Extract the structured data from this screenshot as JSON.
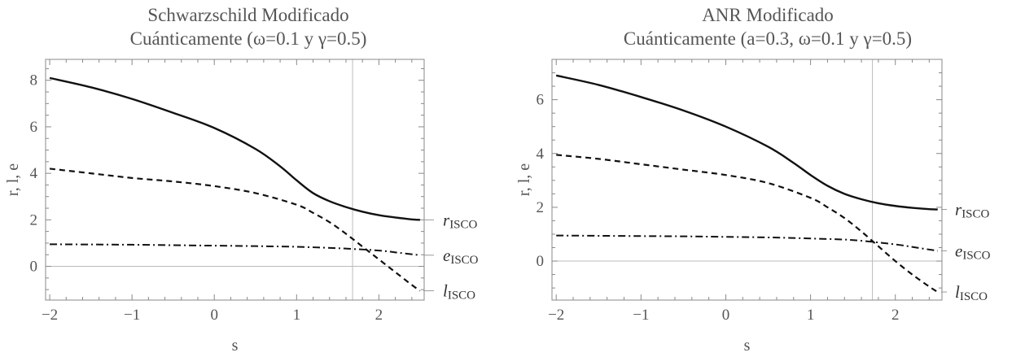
{
  "chart_data": [
    {
      "type": "line",
      "title_lines": [
        "Schwarzschild  Modificado",
        "Cuánticamente  (ω=0.1 y γ=0.5)"
      ],
      "xlabel": "s",
      "ylabel": "r,  l,  e",
      "xlim": [
        -2.05,
        2.55
      ],
      "ylim": [
        -1.45,
        8.9
      ],
      "xticks": [
        -2,
        -1,
        0,
        1,
        2
      ],
      "xtick_labels": [
        "−2",
        "−1",
        "0",
        "1",
        "2"
      ],
      "yticks": [
        0,
        2,
        4,
        6,
        8
      ],
      "ytick_labels": [
        "0",
        "2",
        "4",
        "6",
        "8"
      ],
      "reference_lines": {
        "y": 0,
        "x": 1.68
      },
      "series": [
        {
          "name": "r_ISCO",
          "label_main": "r",
          "label_sub": "ISCO",
          "style": "solid",
          "x": [
            -2,
            -1.5,
            -1,
            -0.5,
            0,
            0.5,
            0.8,
            1.0,
            1.2,
            1.4,
            1.6,
            1.8,
            2.0,
            2.2,
            2.4,
            2.5
          ],
          "y": [
            8.1,
            7.7,
            7.2,
            6.6,
            5.95,
            5.05,
            4.3,
            3.7,
            3.15,
            2.8,
            2.55,
            2.35,
            2.2,
            2.1,
            2.02,
            2.0
          ]
        },
        {
          "name": "e_ISCO",
          "label_main": "e",
          "label_sub": "ISCO",
          "style": "dashdot",
          "x": [
            -2,
            -1.5,
            -1,
            -0.5,
            0,
            0.5,
            1.0,
            1.5,
            2.0,
            2.25,
            2.5
          ],
          "y": [
            0.95,
            0.94,
            0.93,
            0.91,
            0.89,
            0.87,
            0.84,
            0.78,
            0.68,
            0.58,
            0.48
          ]
        },
        {
          "name": "l_ISCO",
          "label_main": "l",
          "label_sub": "ISCO",
          "style": "dashed",
          "x": [
            -2,
            -1.5,
            -1,
            -0.5,
            0,
            0.5,
            1.0,
            1.2,
            1.4,
            1.6,
            1.8,
            2.0,
            2.2,
            2.4,
            2.5
          ],
          "y": [
            4.2,
            4.0,
            3.8,
            3.65,
            3.45,
            3.15,
            2.65,
            2.3,
            1.9,
            1.4,
            0.85,
            0.3,
            -0.25,
            -0.8,
            -1.05
          ]
        }
      ]
    },
    {
      "type": "line",
      "title_lines": [
        "ANR  Modificado",
        "Cuánticamente  (a=0.3, ω=0.1 y γ=0.5)"
      ],
      "xlabel": "s",
      "ylabel": "r,  l,  e",
      "xlim": [
        -2.05,
        2.55
      ],
      "ylim": [
        -1.45,
        7.5
      ],
      "xticks": [
        -2,
        -1,
        0,
        1,
        2
      ],
      "xtick_labels": [
        "−2",
        "−1",
        "0",
        "1",
        "2"
      ],
      "yticks": [
        0,
        2,
        4,
        6
      ],
      "ytick_labels": [
        "0",
        "2",
        "4",
        "6"
      ],
      "reference_lines": {
        "y": 0,
        "x": 1.73
      },
      "series": [
        {
          "name": "r_ISCO",
          "label_main": "r",
          "label_sub": "ISCO",
          "style": "solid",
          "x": [
            -2,
            -1.5,
            -1,
            -0.5,
            0,
            0.5,
            0.8,
            1.0,
            1.2,
            1.4,
            1.6,
            1.8,
            2.0,
            2.2,
            2.4,
            2.5
          ],
          "y": [
            6.9,
            6.55,
            6.1,
            5.6,
            5.0,
            4.25,
            3.65,
            3.2,
            2.8,
            2.5,
            2.3,
            2.15,
            2.05,
            1.98,
            1.93,
            1.92
          ]
        },
        {
          "name": "e_ISCO",
          "label_main": "e",
          "label_sub": "ISCO",
          "style": "dashdot",
          "x": [
            -2,
            -1.5,
            -1,
            -0.5,
            0,
            0.5,
            1.0,
            1.5,
            2.0,
            2.25,
            2.5
          ],
          "y": [
            0.95,
            0.94,
            0.93,
            0.92,
            0.9,
            0.88,
            0.84,
            0.78,
            0.62,
            0.5,
            0.38
          ]
        },
        {
          "name": "l_ISCO",
          "label_main": "l",
          "label_sub": "ISCO",
          "style": "dashed",
          "x": [
            -2,
            -1.5,
            -1,
            -0.5,
            0,
            0.5,
            1.0,
            1.2,
            1.4,
            1.6,
            1.8,
            2.0,
            2.2,
            2.4,
            2.5
          ],
          "y": [
            3.95,
            3.8,
            3.6,
            3.4,
            3.2,
            2.9,
            2.35,
            2.0,
            1.6,
            1.1,
            0.55,
            0.0,
            -0.5,
            -0.95,
            -1.15
          ]
        }
      ]
    }
  ]
}
